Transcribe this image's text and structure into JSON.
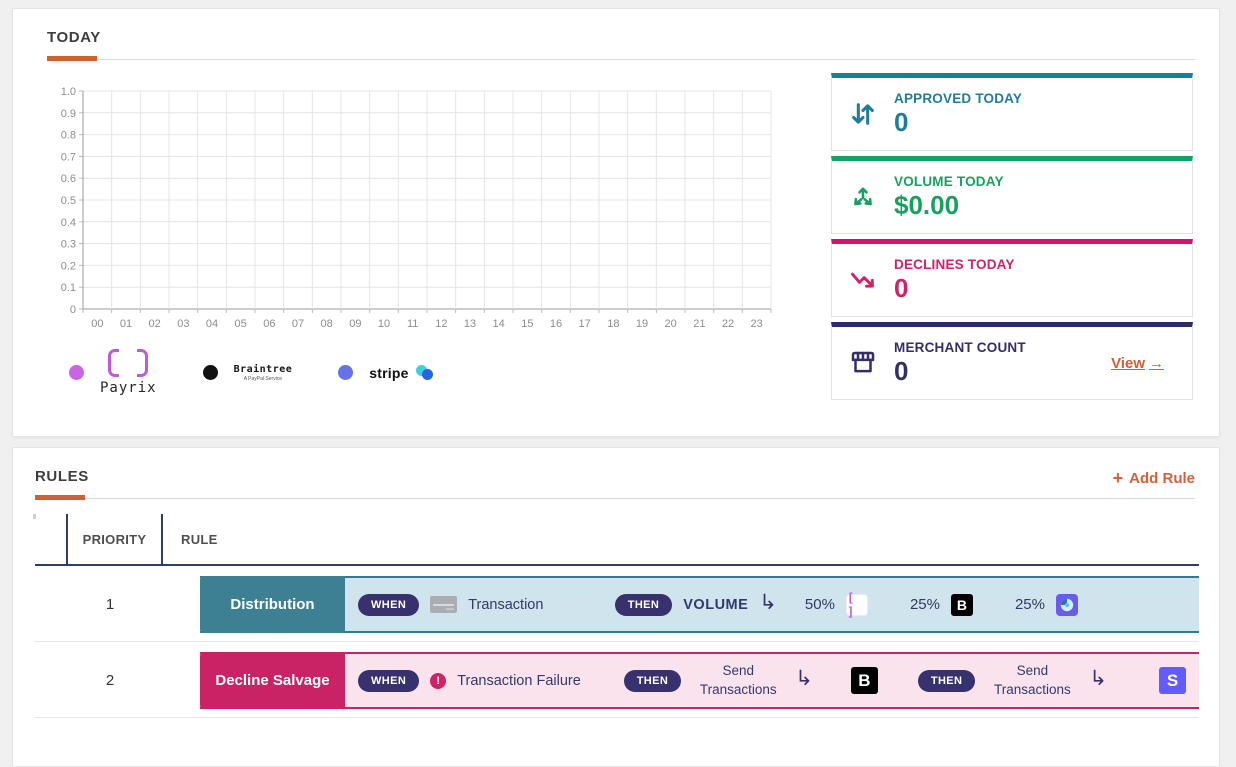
{
  "theme": {
    "accent_orange": "#d05f38",
    "pill_navy": "#37316d",
    "band_text_navy": "#323a69",
    "header_border_navy": "#2e3f61"
  },
  "today": {
    "title": "TODAY",
    "chart_data": {
      "type": "line",
      "title": "",
      "xlabel": "",
      "ylabel": "",
      "x": [
        "00",
        "01",
        "02",
        "03",
        "04",
        "05",
        "06",
        "07",
        "08",
        "09",
        "10",
        "11",
        "12",
        "13",
        "14",
        "15",
        "16",
        "17",
        "18",
        "19",
        "20",
        "21",
        "22",
        "23"
      ],
      "ytick_labels": [
        "1.0",
        "0.9",
        "0.8",
        "0.7",
        "0.6",
        "0.5",
        "0.4",
        "0.3",
        "0.2",
        "0.1",
        "0"
      ],
      "ylim": [
        0,
        1.0
      ],
      "grid": true,
      "legend_position": "bottom",
      "series": [
        {
          "name": "Payrix",
          "color": "#c765e2",
          "values": []
        },
        {
          "name": "Braintree",
          "color": "#111111",
          "values": []
        },
        {
          "name": "Stripe",
          "color": "#6673e6",
          "values": []
        }
      ],
      "note": "empty chart - no transactions plotted today"
    },
    "legend": [
      {
        "name": "Payrix",
        "dot_color": "#c765e2",
        "wordmark": "Payrix"
      },
      {
        "name": "Braintree",
        "dot_color": "#111111",
        "wordmark": "Braintree",
        "tagline": "A PayPal Service"
      },
      {
        "name": "Stripe",
        "dot_color": "#6673e6",
        "wordmark": "stripe"
      }
    ],
    "stats": [
      {
        "label": "APPROVED TODAY",
        "value": "0",
        "text_color": "#1e7d9c",
        "accent_color": "#17809d",
        "icon": "arrows-down-up"
      },
      {
        "label": "VOLUME TODAY",
        "value": "$0.00",
        "text_color": "#17a15e",
        "accent_color": "#10a363",
        "icon": "arrows-spread"
      },
      {
        "label": "DECLINES TODAY",
        "value": "0",
        "text_color": "#d12169",
        "accent_color": "#d6106c",
        "icon": "trend-down"
      },
      {
        "label": "MERCHANT COUNT",
        "value": "0",
        "text_color": "#322e68",
        "accent_color": "#2d2a6e",
        "icon": "storefront",
        "link_label": "View"
      }
    ]
  },
  "rules": {
    "title": "RULES",
    "add_button_label": "Add Rule",
    "columns": {
      "priority": "PRIORITY",
      "rule": "RULE"
    },
    "rows": [
      {
        "priority": "1",
        "name": "Distribution",
        "theme": {
          "block": "#3e8093",
          "band_bg": "#cfe4ec",
          "band_border": "#35798e"
        },
        "when": {
          "label": "WHEN",
          "icon": "credit-card",
          "text": "Transaction"
        },
        "then": [
          {
            "label": "THEN",
            "text": "VOLUME",
            "targets": [
              {
                "pct": "50%",
                "connector": "Payrix"
              },
              {
                "pct": "25%",
                "connector": "Braintree"
              },
              {
                "pct": "25%",
                "connector": "Stripe"
              }
            ]
          }
        ]
      },
      {
        "priority": "2",
        "name": "Decline Salvage",
        "theme": {
          "block": "#ca2365",
          "band_bg": "#fbe3ee",
          "band_border": "#ca2365"
        },
        "when": {
          "label": "WHEN",
          "icon": "alert",
          "text": "Transaction Failure"
        },
        "then": [
          {
            "label": "THEN",
            "text": "Send Transactions",
            "connector": "Braintree"
          },
          {
            "label": "THEN",
            "text": "Send Transactions",
            "connector": "Stripe"
          }
        ]
      }
    ]
  },
  "icons": {
    "plus": "+",
    "arrow_right": "→",
    "branch_arrow": "↳",
    "alert_glyph": "!",
    "braintree_letter": "B",
    "stripe_letter": "S",
    "payrix_brackets": "[ ]"
  }
}
